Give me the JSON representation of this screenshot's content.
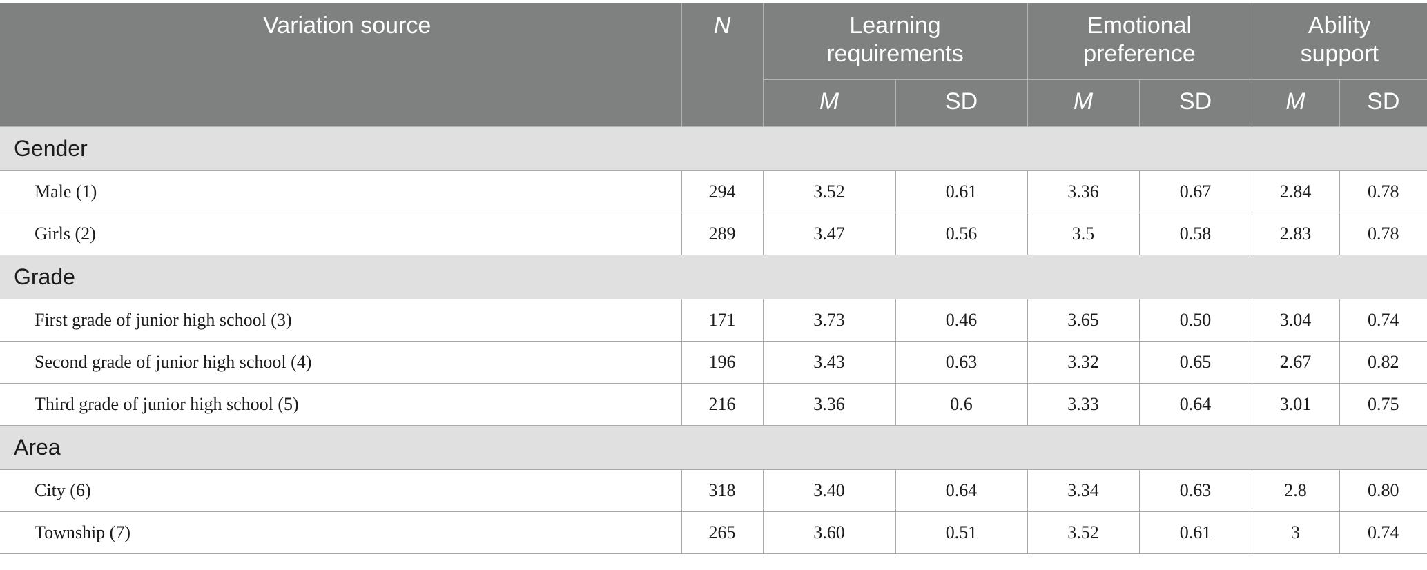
{
  "header": {
    "variation_source": "Variation source",
    "n": "N",
    "groups": [
      "Learning requirements",
      "Emotional preference",
      "Ability support"
    ],
    "m": "M",
    "sd": "SD"
  },
  "sections": [
    {
      "label": "Gender",
      "rows": [
        {
          "name": "Male (1)",
          "n": "294",
          "lr_m": "3.52",
          "lr_sd": "0.61",
          "ep_m": "3.36",
          "ep_sd": "0.67",
          "as_m": "2.84",
          "as_sd": "0.78"
        },
        {
          "name": "Girls (2)",
          "n": "289",
          "lr_m": "3.47",
          "lr_sd": "0.56",
          "ep_m": "3.5",
          "ep_sd": "0.58",
          "as_m": "2.83",
          "as_sd": "0.78"
        }
      ]
    },
    {
      "label": "Grade",
      "rows": [
        {
          "name": "First grade of junior high school (3)",
          "n": "171",
          "lr_m": "3.73",
          "lr_sd": "0.46",
          "ep_m": "3.65",
          "ep_sd": "0.50",
          "as_m": "3.04",
          "as_sd": "0.74"
        },
        {
          "name": "Second grade of junior high school (4)",
          "n": "196",
          "lr_m": "3.43",
          "lr_sd": "0.63",
          "ep_m": "3.32",
          "ep_sd": "0.65",
          "as_m": "2.67",
          "as_sd": "0.82"
        },
        {
          "name": "Third grade of junior high school (5)",
          "n": "216",
          "lr_m": "3.36",
          "lr_sd": "0.6",
          "ep_m": "3.33",
          "ep_sd": "0.64",
          "as_m": "3.01",
          "as_sd": "0.75"
        }
      ]
    },
    {
      "label": "Area",
      "rows": [
        {
          "name": "City (6)",
          "n": "318",
          "lr_m": "3.40",
          "lr_sd": "0.64",
          "ep_m": "3.34",
          "ep_sd": "0.63",
          "as_m": "2.8",
          "as_sd": "0.80"
        },
        {
          "name": "Township (7)",
          "n": "265",
          "lr_m": "3.60",
          "lr_sd": "0.51",
          "ep_m": "3.52",
          "ep_sd": "0.61",
          "as_m": "3",
          "as_sd": "0.74"
        }
      ]
    }
  ],
  "colors": {
    "header_bg": "#7f8180",
    "header_text": "#ffffff",
    "section_bg": "#e1e0e1",
    "grid_line": "#a8a8a8"
  }
}
